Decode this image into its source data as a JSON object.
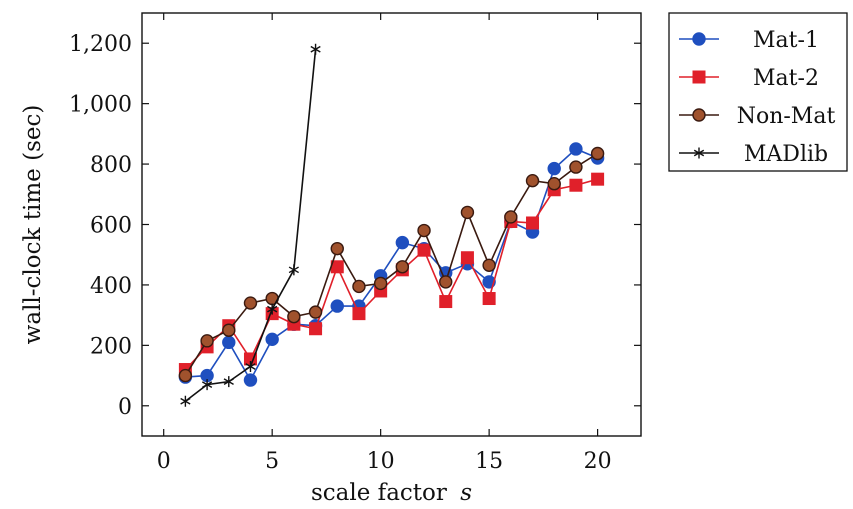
{
  "chart_data": {
    "type": "line",
    "title": "",
    "xlabel": "scale factor",
    "xlabel_var": "s",
    "ylabel": "wall-clock time (sec)",
    "xlim": [
      -1,
      22
    ],
    "ylim": [
      -100,
      1300
    ],
    "x_ticks": [
      0,
      5,
      10,
      15,
      20
    ],
    "x_tick_labels": [
      "0",
      "5",
      "10",
      "15",
      "20"
    ],
    "y_ticks": [
      0,
      200,
      400,
      600,
      800,
      1000,
      1200
    ],
    "y_tick_labels": [
      "0",
      "200",
      "400",
      "600",
      "800",
      "1,000",
      "1,200"
    ],
    "grid": false,
    "legend_position": "outside-top-right",
    "series": [
      {
        "name": "Mat-1",
        "color": "#1f4fbf",
        "marker": "circle",
        "x": [
          1,
          2,
          3,
          4,
          5,
          6,
          7,
          8,
          9,
          10,
          11,
          12,
          13,
          14,
          15,
          16,
          17,
          18,
          19,
          20
        ],
        "values": [
          95,
          100,
          210,
          85,
          220,
          270,
          265,
          330,
          330,
          430,
          540,
          520,
          440,
          470,
          410,
          610,
          575,
          785,
          850,
          820
        ]
      },
      {
        "name": "Mat-2",
        "color": "#e0202a",
        "marker": "square",
        "x": [
          1,
          2,
          3,
          4,
          5,
          6,
          7,
          8,
          9,
          10,
          11,
          12,
          13,
          14,
          15,
          16,
          17,
          18,
          19,
          20
        ],
        "values": [
          120,
          195,
          265,
          155,
          305,
          270,
          255,
          460,
          305,
          380,
          450,
          515,
          345,
          490,
          355,
          610,
          605,
          715,
          730,
          750
        ]
      },
      {
        "name": "Non-Mat",
        "color": "#3a1a10",
        "fill": "#a0522d",
        "marker": "circle",
        "x": [
          1,
          2,
          3,
          4,
          5,
          6,
          7,
          8,
          9,
          10,
          11,
          12,
          13,
          14,
          15,
          16,
          17,
          18,
          19,
          20
        ],
        "values": [
          100,
          215,
          250,
          340,
          355,
          295,
          310,
          520,
          395,
          405,
          460,
          580,
          410,
          640,
          465,
          625,
          745,
          735,
          790,
          835
        ]
      },
      {
        "name": "MADlib",
        "color": "#111111",
        "marker": "star",
        "x": [
          1,
          2,
          3,
          4,
          5,
          6,
          7
        ],
        "values": [
          15,
          70,
          80,
          130,
          320,
          450,
          1180
        ]
      }
    ]
  }
}
